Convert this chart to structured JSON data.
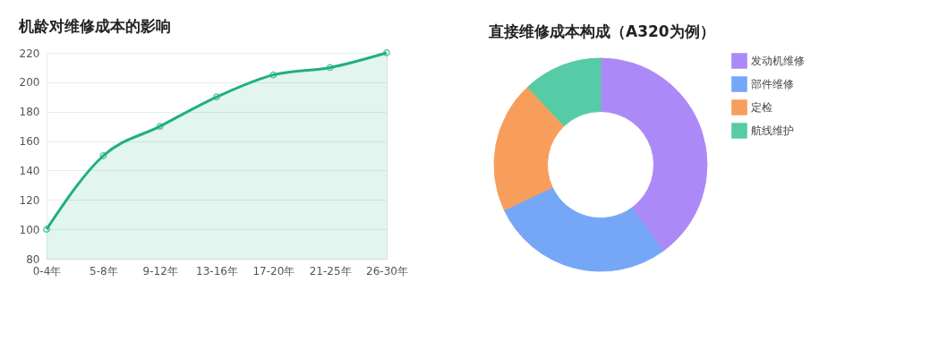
{
  "chart_data": [
    {
      "type": "area",
      "title": "机龄对维修成本的影响",
      "categories": [
        "0-4年",
        "5-8年",
        "9-12年",
        "13-16年",
        "17-20年",
        "21-25年",
        "26-30年"
      ],
      "series": [
        {
          "color": "#1fb07e",
          "values": [
            100,
            150,
            170,
            190,
            205,
            210,
            220
          ]
        }
      ],
      "ylim": [
        80,
        220
      ],
      "yticks": [
        80,
        100,
        120,
        140,
        160,
        180,
        200,
        220
      ],
      "grid": "y",
      "marker": "circle",
      "line_style": "solid"
    },
    {
      "type": "donut",
      "title": "直接维修成本构成（A320为例）",
      "categories": [
        "发动机维修",
        "部件维修",
        "定检",
        "航线维护"
      ],
      "values": [
        40,
        28,
        20,
        12
      ],
      "colors": [
        "#ab8af7",
        "#76a7f7",
        "#f89e5c",
        "#55cca6"
      ],
      "legend": "right"
    }
  ]
}
